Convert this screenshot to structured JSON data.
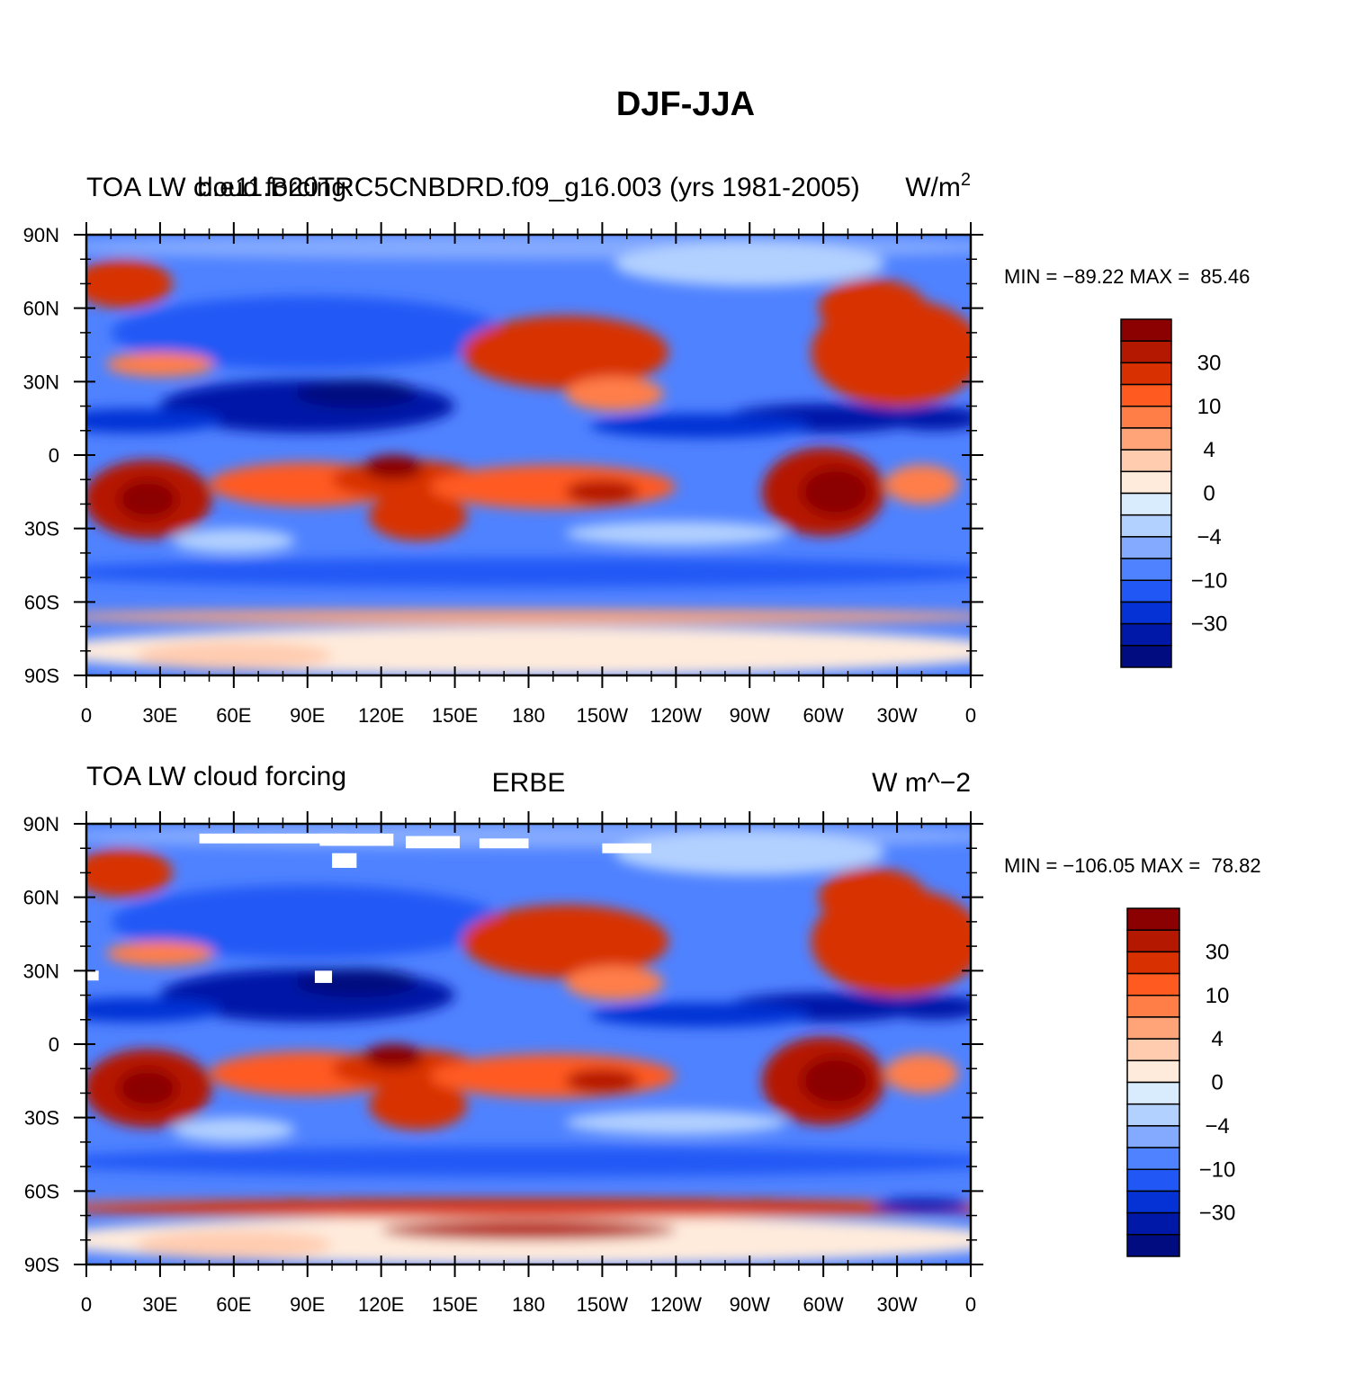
{
  "title": "DJF-JJA",
  "colorbar_colors": [
    "#8b0000",
    "#b51800",
    "#d83000",
    "#ff5a20",
    "#ff7e48",
    "#ffa478",
    "#ffccb0",
    "#ffebdc",
    "#d9ecfe",
    "#b3d1ff",
    "#84aaff",
    "#4f82ff",
    "#2158f5",
    "#0532d4",
    "#0018a8",
    "#000c80"
  ],
  "panels": [
    {
      "left_string": "TOA LW cloud forcing",
      "center_string": "b.e11.B20TRC5CNBDRD.f09_g16.003 (yrs 1981-2005)",
      "right_string": "W/m",
      "right_superscript": "2",
      "stats": "MIN = −89.22 MAX =  85.46",
      "lat_labels": [
        "90N",
        "60N",
        "30N",
        "0",
        "30S",
        "60S",
        "90S"
      ],
      "lon_labels": [
        "0",
        "30E",
        "60E",
        "90E",
        "120E",
        "150E",
        "180",
        "150W",
        "120W",
        "90W",
        "60W",
        "30W",
        "0"
      ],
      "colorbar_labels": [
        "30",
        "10",
        "4",
        "0",
        "−4",
        "−10",
        "−30"
      ]
    },
    {
      "left_string": "TOA LW cloud forcing",
      "center_string": "ERBE",
      "right_string": "W m^−2",
      "stats": "MIN = −106.05 MAX =  78.82",
      "lat_labels": [
        "90N",
        "60N",
        "30N",
        "0",
        "30S",
        "60S",
        "90S"
      ],
      "lon_labels": [
        "0",
        "30E",
        "60E",
        "90E",
        "120E",
        "150E",
        "180",
        "150W",
        "120W",
        "90W",
        "60W",
        "30W",
        "0"
      ],
      "colorbar_labels": [
        "30",
        "10",
        "4",
        "0",
        "−4",
        "−10",
        "−30"
      ]
    }
  ]
}
